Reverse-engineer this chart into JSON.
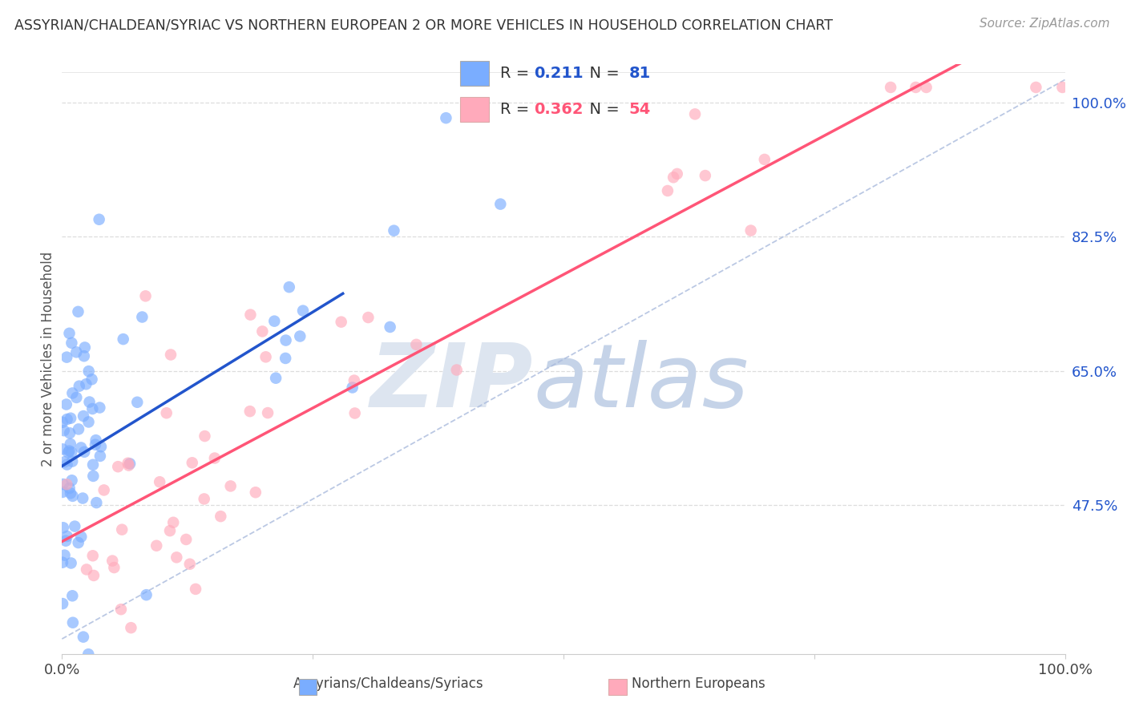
{
  "title": "ASSYRIAN/CHALDEAN/SYRIAC VS NORTHERN EUROPEAN 2 OR MORE VEHICLES IN HOUSEHOLD CORRELATION CHART",
  "source": "Source: ZipAtlas.com",
  "xlabel_assyrian": "Assyrians/Chaldeans/Syriacs",
  "xlabel_northern": "Northern Europeans",
  "ylabel": "2 or more Vehicles in Household",
  "r_assyrian": 0.211,
  "n_assyrian": 81,
  "r_northern": 0.362,
  "n_northern": 54,
  "color_assyrian": "#7aadff",
  "color_northern": "#ffaabb",
  "color_assyrian_line": "#2255cc",
  "color_northern_line": "#ff5577",
  "color_diag": "#aabbdd",
  "xlim": [
    0.0,
    1.0
  ],
  "ylim_min": 0.28,
  "ylim_max": 1.05,
  "ytick_vals": [
    0.475,
    0.65,
    0.825,
    1.0
  ],
  "ytick_labels": [
    "47.5%",
    "65.0%",
    "82.5%",
    "100.0%"
  ],
  "xtick_vals": [
    0.0,
    0.25,
    0.5,
    0.75,
    1.0
  ],
  "xtick_labels": [
    "0.0%",
    "",
    "",
    "",
    "100.0%"
  ],
  "background_color": "#ffffff",
  "grid_color": "#dddddd",
  "watermark_zip_color": "#dde5f0",
  "watermark_atlas_color": "#c5d3e8"
}
